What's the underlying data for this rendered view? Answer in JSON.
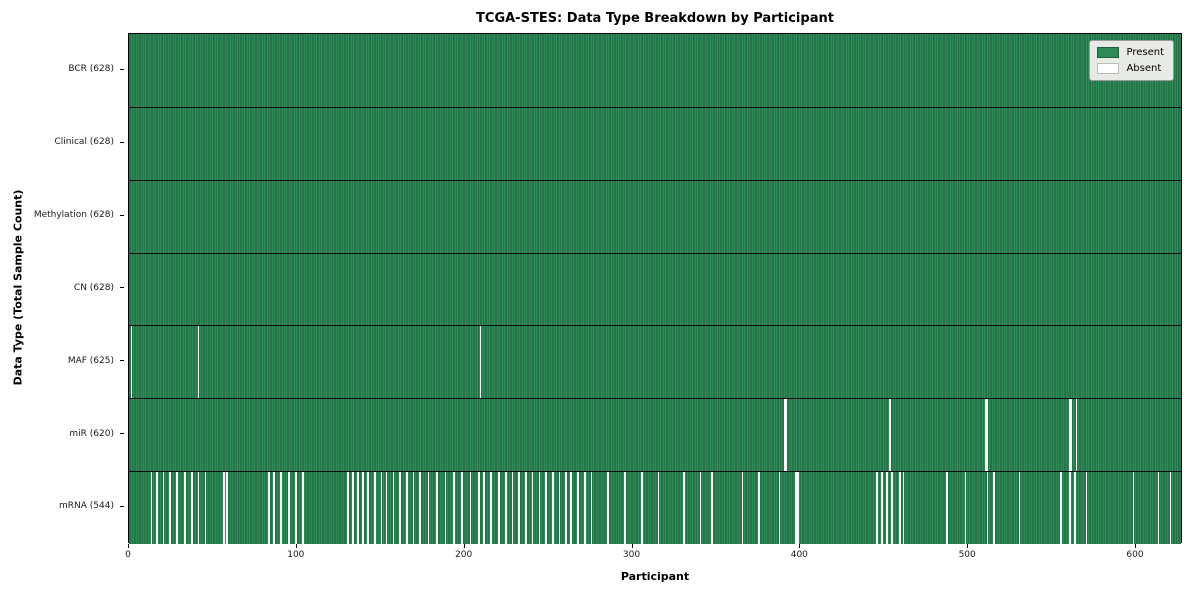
{
  "chart_data": {
    "type": "heatmap",
    "title": "TCGA-STES: Data Type Breakdown by Participant",
    "xlabel": "Participant",
    "ylabel": "Data Type (Total Sample Count)",
    "x_ticks": [
      0,
      100,
      200,
      300,
      400,
      500,
      600
    ],
    "xlim": [
      0,
      628
    ],
    "n_participants": 628,
    "grid": false,
    "legend_position": "upper right",
    "legend_entries": [
      {
        "label": "Present",
        "color": "#2e8b57",
        "border": "#1e5e3e"
      },
      {
        "label": "Absent",
        "color": "#ffffff",
        "border": "#bbbbbb"
      }
    ],
    "colors": {
      "present": "#2e8b57",
      "present_edge": "#1f5f3e",
      "absent": "#f7f7f7",
      "row_separator": "#0d0d0d"
    },
    "rows": [
      {
        "label": "BCR (628)",
        "present_count": 628,
        "absent_count": 0,
        "absent_participants": []
      },
      {
        "label": "Clinical (628)",
        "present_count": 628,
        "absent_count": 0,
        "absent_participants": []
      },
      {
        "label": "Methylation (628)",
        "present_count": 628,
        "absent_count": 0,
        "absent_participants": []
      },
      {
        "label": "CN (628)",
        "present_count": 628,
        "absent_count": 0,
        "absent_participants": []
      },
      {
        "label": "MAF (625)",
        "present_count": 625,
        "absent_count": 3,
        "absent_participants": [
          1,
          41,
          209
        ]
      },
      {
        "label": "miR (620)",
        "present_count": 620,
        "absent_count": 8,
        "absent_participants": [
          390,
          391,
          453,
          510,
          511,
          560,
          561,
          564
        ]
      },
      {
        "label": "mRNA (544)",
        "present_count": 544,
        "absent_count": 84,
        "absent_participants": [
          13,
          16,
          20,
          24,
          28,
          33,
          37,
          41,
          45,
          56,
          58,
          83,
          86,
          90,
          95,
          99,
          103,
          130,
          133,
          136,
          139,
          142,
          146,
          150,
          153,
          157,
          161,
          165,
          169,
          173,
          178,
          183,
          188,
          193,
          198,
          203,
          208,
          211,
          215,
          220,
          224,
          228,
          232,
          236,
          240,
          244,
          248,
          252,
          256,
          260,
          263,
          267,
          271,
          275,
          285,
          295,
          305,
          315,
          330,
          340,
          347,
          365,
          375,
          387,
          397,
          398,
          445,
          448,
          451,
          454,
          459,
          461,
          487,
          498,
          511,
          515,
          530,
          555,
          560,
          563,
          570,
          598,
          613,
          620
        ]
      }
    ]
  }
}
